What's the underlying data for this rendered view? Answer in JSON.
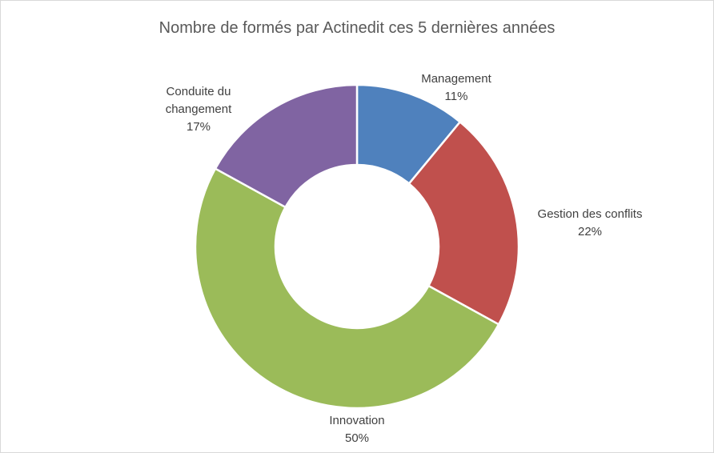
{
  "chart_data": {
    "type": "pie",
    "style": "donut",
    "title": "Nombre de formés par Actinedit ces 5 dernières années",
    "categories": [
      "Management",
      "Gestion des conflits",
      "Innovation",
      "Conduite du changement"
    ],
    "values": [
      11,
      22,
      50,
      17
    ],
    "value_labels": [
      "11%",
      "22%",
      "50%",
      "17%"
    ],
    "colors": [
      "#4f81bd",
      "#c0504d",
      "#9bbb59",
      "#8064a2"
    ],
    "label_lines": [
      [
        "Management"
      ],
      [
        "Gestion des conflits"
      ],
      [
        "Innovation"
      ],
      [
        "Conduite du",
        "changement"
      ]
    ],
    "legend": "none"
  }
}
